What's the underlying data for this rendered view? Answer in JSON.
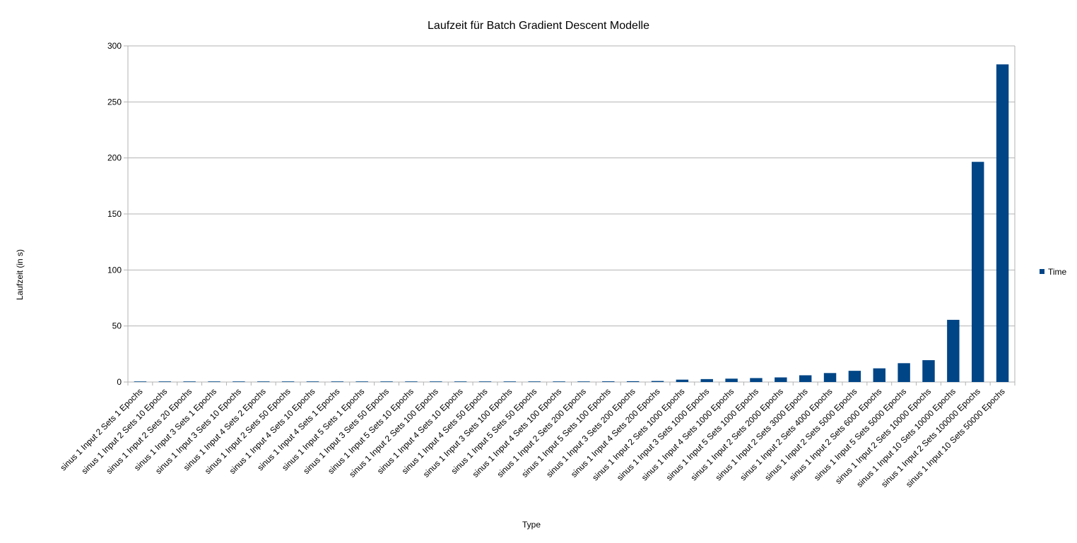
{
  "chart_data": {
    "type": "bar",
    "title": "Laufzeit für Batch Gradient Descent Modelle",
    "xlabel": "Type",
    "ylabel": "Laufzeit (in s)",
    "ylim": [
      0,
      300
    ],
    "yticks": [
      0,
      50,
      100,
      150,
      200,
      250,
      300
    ],
    "grid": true,
    "legend_position": "right",
    "categories": [
      "sinus 1 Input 2 Sets 1 Epochs",
      "sinus 1 Input 2 Sets 10 Epochs",
      "sinus 1 Input 2 Sets 20 Epochs",
      "sinus 1 Input 3 Sets 1 Epochs",
      "sinus 1 Input 3 Sets 10 Epochs",
      "sinus 1 Input 4 Sets 2 Epochs",
      "sinus 1 Input 2 Sets 50 Epochs",
      "sinus 1 Input 4 Sets 10 Epochs",
      "sinus 1 Input 4 Sets 1 Epochs",
      "sinus 1 Input 5 Sets 1 Epochs",
      "sinus 1 Input 3 Sets 50 Epochs",
      "sinus 1 Input 5 Sets 10 Epochs",
      "sinus 1 Input 2 Sets 100 Epochs",
      "sinus 1 Input 4 Sets 10 Epochs",
      "sinus 1 Input 4 Sets 50 Epochs",
      "sinus 1 Input 3 Sets 100 Epochs",
      "sinus 1 Input 5 Sets 50 Epochs",
      "sinus 1 Input 4 Sets 100 Epochs",
      "sinus 1 Input 2 Sets 200 Epochs",
      "sinus 1 Input 5 Sets 100 Epochs",
      "sinus 1 Input 3 Sets 200 Epochs",
      "sinus 1 Input 4 Sets 200 Epochs",
      "sinus 1 Input 2 Sets 1000 Epochs",
      "sinus 1 Input 3 Sets 1000 Epochs",
      "sinus 1 Input 4 Sets 1000 Epochs",
      "sinus 1 Input 5 Sets 1000 Epochs",
      "sinus 1 Input 2 Sets 2000 Epochs",
      "sinus 1 Input 2 Sets 3000 Epochs",
      "sinus 1 Input 2 Sets 4000 Epochs",
      "sinus 1 Input 2 Sets 5000 Epochs",
      "sinus 1 Input 2 Sets 6000 Epochs",
      "sinus 1 Input 5 Sets 5000 Epochs",
      "sinus 1 Input 2 Sets 10000 Epochs",
      "sinus 1 Input 10 Sets 10000 Epochs",
      "sinus 1 Input 2 Sets 100000 Epochs",
      "sinus 1 Input 10 Sets 50000 Epochs"
    ],
    "series": [
      {
        "name": "Time",
        "color": "#004586",
        "values": [
          0.1,
          0.1,
          0.1,
          0.1,
          0.15,
          0.15,
          0.2,
          0.2,
          0.2,
          0.25,
          0.25,
          0.3,
          0.3,
          0.35,
          0.35,
          0.4,
          0.45,
          0.5,
          0.5,
          0.6,
          0.7,
          0.9,
          2.1,
          2.6,
          3.0,
          3.5,
          4.1,
          6.0,
          8.0,
          10.0,
          12.2,
          16.8,
          19.5,
          55.5,
          196.5,
          283.5
        ]
      }
    ]
  }
}
